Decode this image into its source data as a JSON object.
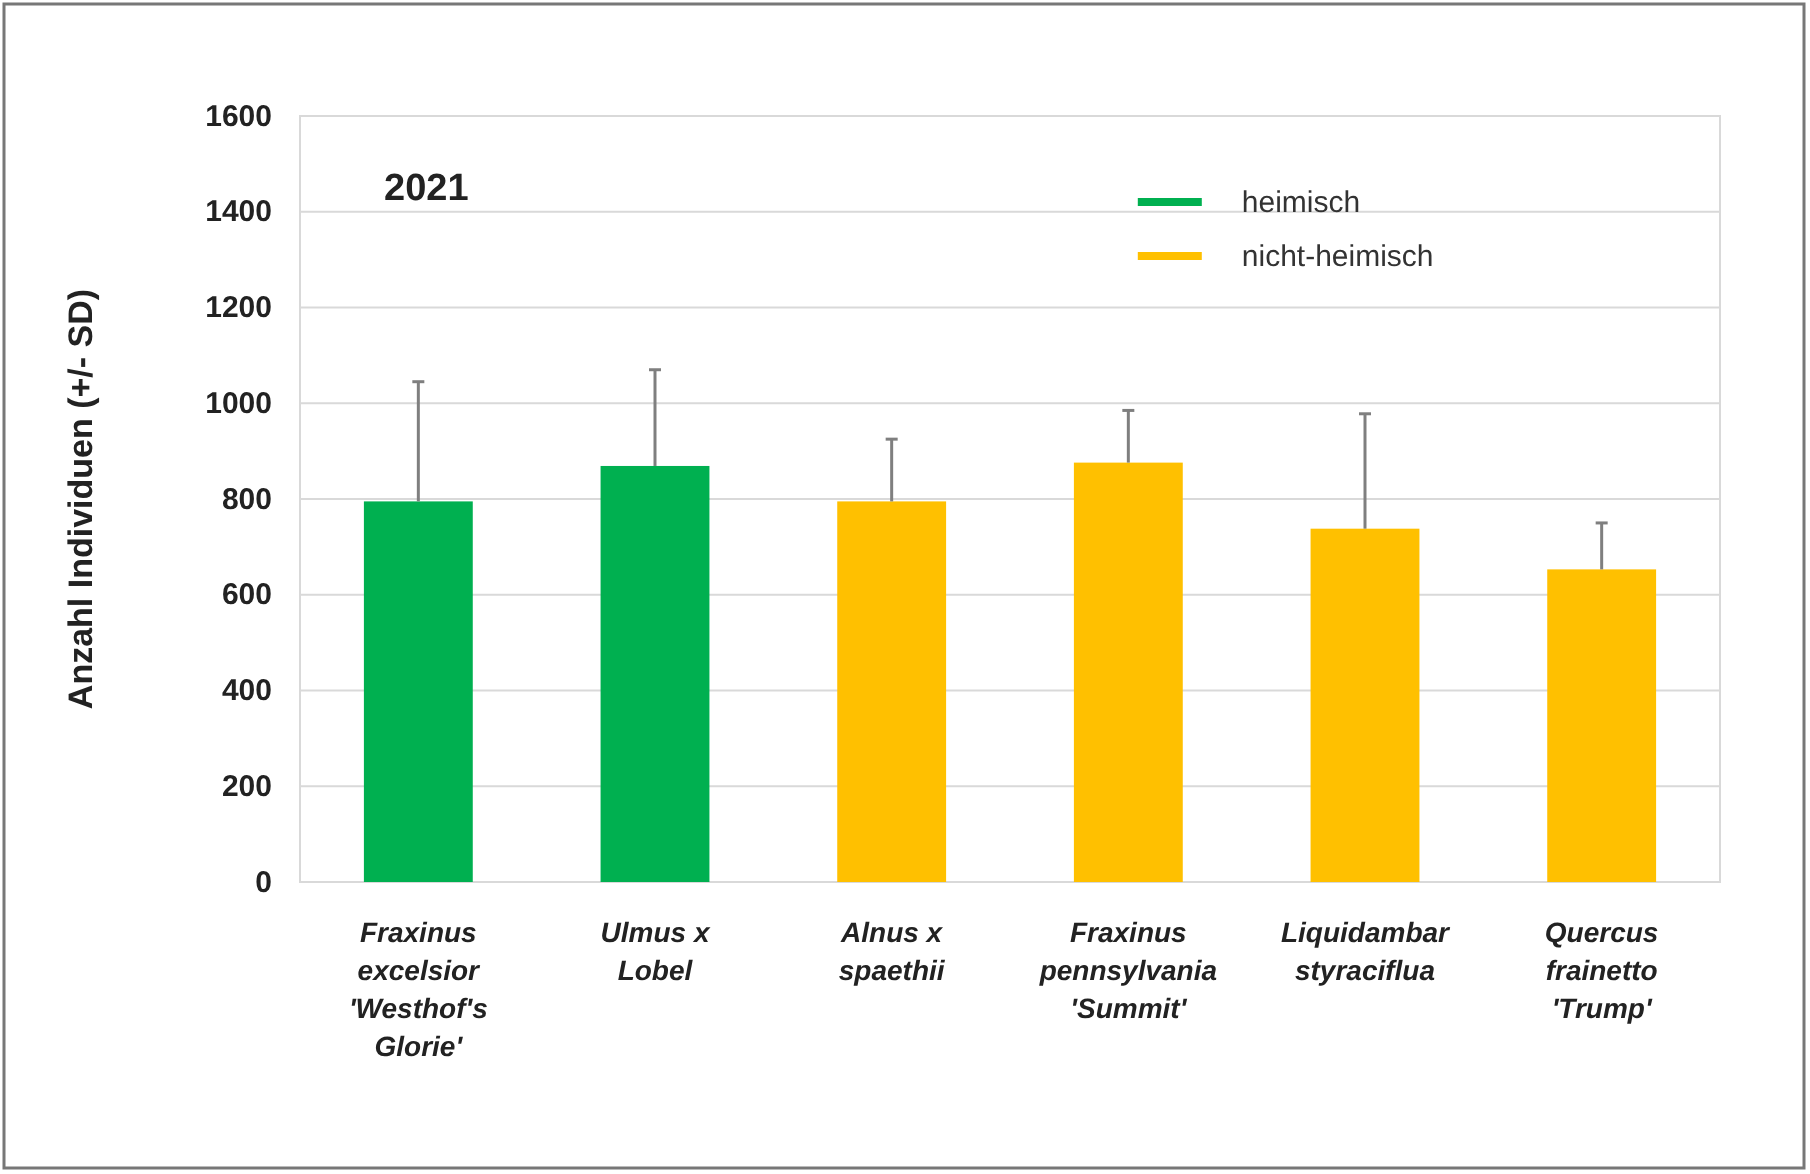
{
  "chart_data": {
    "type": "bar",
    "title": "2021",
    "ylabel": "Anzahl Individuen (+/- SD)",
    "categories": [
      "Fraxinus excelsior 'Westhof's Glorie'",
      "Ulmus x Lobel",
      "Alnus x spaethii",
      "Fraxinus pennsylvania 'Summit'",
      "Liquidambar styraciflua",
      "Quercus frainetto 'Trump'"
    ],
    "series": [
      {
        "name": "heimisch",
        "color": "#00b050",
        "values": [
          795,
          869,
          null,
          null,
          null,
          null
        ],
        "errors": [
          [
            795,
            1045
          ],
          [
            869,
            1070
          ],
          null,
          null,
          null,
          null
        ]
      },
      {
        "name": "nicht-heimisch",
        "color": "#ffc000",
        "values": [
          null,
          null,
          795,
          876,
          738,
          653
        ],
        "errors": [
          null,
          null,
          [
            795,
            925
          ],
          [
            876,
            985
          ],
          [
            738,
            978
          ],
          [
            653,
            750
          ]
        ]
      }
    ],
    "ylim": [
      0,
      1600
    ],
    "yticks": [
      0,
      200,
      400,
      600,
      800,
      1000,
      1200,
      1400,
      1600
    ],
    "grid": "y",
    "legend": "top right"
  }
}
